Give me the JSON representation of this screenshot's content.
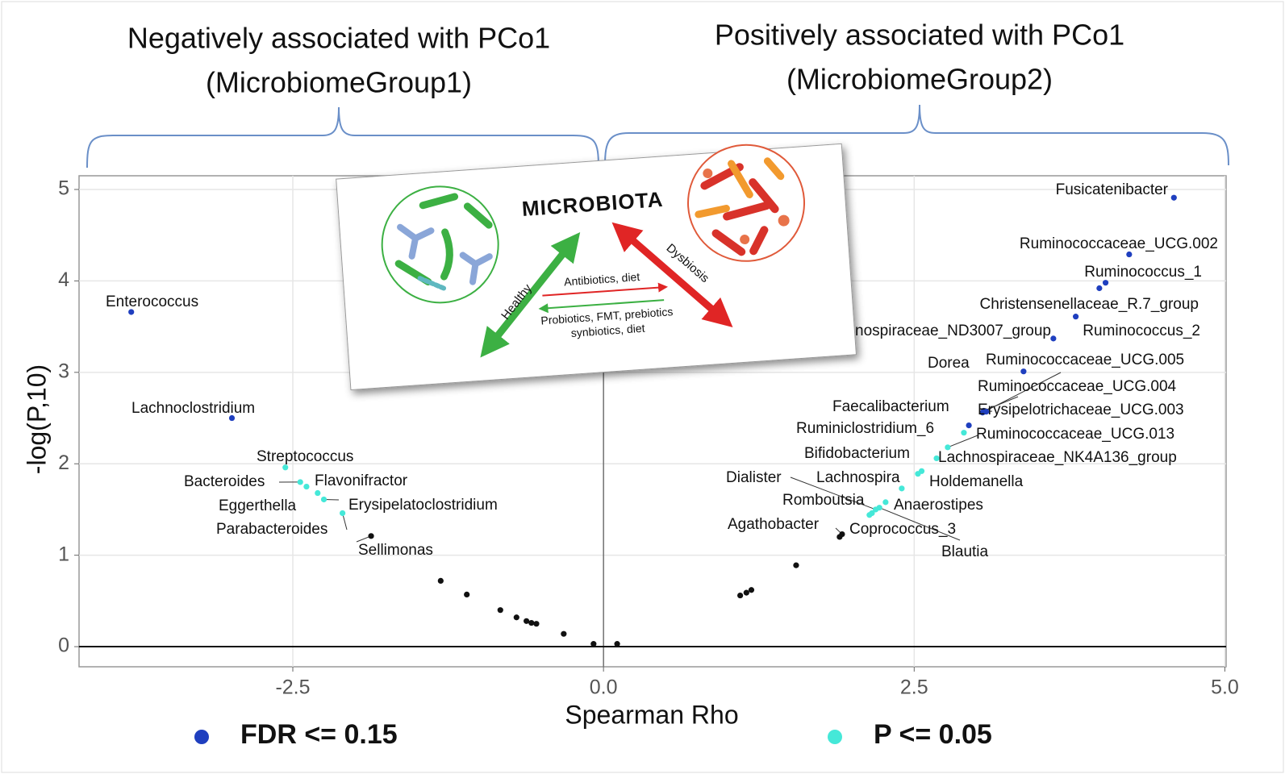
{
  "chart_data": {
    "type": "scatter",
    "annotations": [
      "Negatively associated with PCo1",
      "(MicrobiomeGroup1)",
      "Positively associated with PCo1",
      "(MicrobiomeGroup2)"
    ],
    "x_label": "Spearman Rho",
    "y_label": "-log(P,10)",
    "xlim": [
      -4.22,
      5.01
    ],
    "ylim": [
      -0.22,
      5.15
    ],
    "xticks": [
      -2.5,
      {
        "value": 0,
        "label": "0.0"
      },
      2.5,
      {
        "value": 5,
        "label": "5.0"
      }
    ],
    "yticks": [
      0,
      1,
      2,
      3,
      4,
      5
    ],
    "grid": true,
    "series": [
      {
        "name": "FDR <= 0.15",
        "color": "#1f3fbf",
        "x": [
          4.59,
          4.23,
          4.04,
          3.99,
          3.8,
          3.62,
          3.38,
          3.05,
          3.06,
          3.08,
          2.94,
          -3.8,
          -2.99
        ],
        "values": [
          4.91,
          4.29,
          3.98,
          3.92,
          3.61,
          3.37,
          3.01,
          2.56,
          2.58,
          2.57,
          2.42,
          3.66,
          2.5
        ],
        "labels": [
          "Fusicatenibacter",
          "Ruminococcaceae_UCG.002",
          "Ruminococcus_1",
          "Christensenellaceae_R.7_group",
          "Ruminococcus_2",
          "Lachnospiraceae_ND3007_group",
          "Dorea",
          "Ruminococcaceae_UCG.005",
          "Ruminococcaceae_UCG.004",
          "Erysipelotrichaceae_UCG.003",
          "Faecalibacterium",
          "Enterococcus",
          "Lachnoclostridium"
        ]
      },
      {
        "name": "P <= 0.05",
        "color": "#45e8d8",
        "x": [
          2.9,
          2.77,
          2.68,
          2.56,
          2.53,
          2.4,
          2.27,
          2.19,
          2.16,
          2.14,
          2.22,
          -2.56,
          -2.44,
          -2.39,
          -2.3,
          -2.25,
          -2.1
        ],
        "values": [
          2.34,
          2.18,
          2.06,
          1.92,
          1.89,
          1.73,
          1.58,
          1.5,
          1.46,
          1.44,
          1.52,
          1.96,
          1.8,
          1.75,
          1.68,
          1.61,
          1.46
        ],
        "labels": [
          "Ruminiclostridium_6",
          "Ruminococcaceae_UCG.013",
          "Lachnospiraceae_NK4A136_group",
          "Bifidobacterium",
          "Holdemanella",
          "Lachnospira",
          "Anaerostipes",
          "Dialister",
          "Romboutsia",
          "Coprococcus_3",
          "Blautia",
          "Streptococcus",
          "Bacteroides",
          "Flavonifractor",
          "Eggerthella",
          "Erysipelatoclostridium",
          "Parabacteroides"
        ]
      },
      {
        "color": "#111111",
        "x": [
          -1.87,
          1.92,
          1.9,
          -1.31,
          -1.1,
          -0.83,
          -0.7,
          -0.62,
          -0.58,
          -0.54,
          -0.32,
          -0.08,
          0.11,
          1.1,
          1.15,
          1.19,
          1.55
        ],
        "values": [
          1.21,
          1.23,
          1.2,
          0.72,
          0.57,
          0.4,
          0.32,
          0.28,
          0.26,
          0.25,
          0.14,
          0.03,
          0.03,
          0.56,
          0.59,
          0.62,
          0.89
        ],
        "labels": [
          "Sellimonas",
          "Agathobacter",
          null,
          null,
          null,
          null,
          null,
          null,
          null,
          null,
          null,
          null,
          null,
          null,
          null,
          null,
          null
        ]
      }
    ],
    "inset": {
      "title": "MICROBIOTA",
      "healthy": "Healthy",
      "dysbiosis": "Dysbiosis",
      "harm": "Antibiotics, diet",
      "help": [
        "Probiotics, FMT, prebiotics",
        "synbiotics, diet"
      ]
    }
  }
}
